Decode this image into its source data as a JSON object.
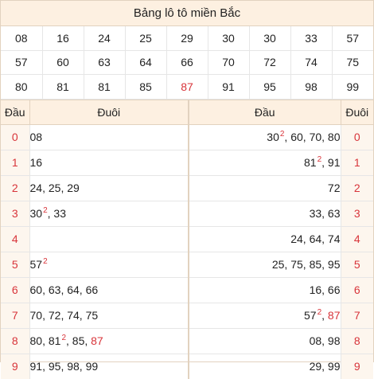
{
  "title": "Bảng lô tô miền Bắc",
  "numbers": [
    [
      "08",
      "16",
      "24",
      "25",
      "29",
      "30",
      "30",
      "33",
      "57"
    ],
    [
      "57",
      "60",
      "63",
      "64",
      "66",
      "70",
      "72",
      "74",
      "75"
    ],
    [
      "80",
      "81",
      "81",
      "85",
      "87",
      "91",
      "95",
      "98",
      "99"
    ]
  ],
  "highlight_numbers": [
    "87"
  ],
  "colors": {
    "accent": "#d8343a",
    "header_bg": "#fdf0e1",
    "border": "#e2d2bf"
  },
  "headers": {
    "dau_left": "Đầu",
    "duoi_left": "Đuôi",
    "dau_right": "Đầu",
    "duoi_right": "Đuôi"
  },
  "rows": [
    {
      "idx": "0",
      "dau": [
        {
          "v": "08"
        }
      ],
      "duoi": [
        {
          "v": "30",
          "sup": "2"
        },
        {
          "v": "60"
        },
        {
          "v": "70"
        },
        {
          "v": "80"
        }
      ]
    },
    {
      "idx": "1",
      "dau": [
        {
          "v": "16"
        }
      ],
      "duoi": [
        {
          "v": "81",
          "sup": "2"
        },
        {
          "v": "91"
        }
      ]
    },
    {
      "idx": "2",
      "dau": [
        {
          "v": "24"
        },
        {
          "v": "25"
        },
        {
          "v": "29"
        }
      ],
      "duoi": [
        {
          "v": "72"
        }
      ]
    },
    {
      "idx": "3",
      "dau": [
        {
          "v": "30",
          "sup": "2"
        },
        {
          "v": "33"
        }
      ],
      "duoi": [
        {
          "v": "33"
        },
        {
          "v": "63"
        }
      ]
    },
    {
      "idx": "4",
      "dau": [],
      "duoi": [
        {
          "v": "24"
        },
        {
          "v": "64"
        },
        {
          "v": "74"
        }
      ]
    },
    {
      "idx": "5",
      "dau": [
        {
          "v": "57",
          "sup": "2"
        }
      ],
      "duoi": [
        {
          "v": "25"
        },
        {
          "v": "75"
        },
        {
          "v": "85"
        },
        {
          "v": "95"
        }
      ]
    },
    {
      "idx": "6",
      "dau": [
        {
          "v": "60"
        },
        {
          "v": "63"
        },
        {
          "v": "64"
        },
        {
          "v": "66"
        }
      ],
      "duoi": [
        {
          "v": "16"
        },
        {
          "v": "66"
        }
      ]
    },
    {
      "idx": "7",
      "dau": [
        {
          "v": "70"
        },
        {
          "v": "72"
        },
        {
          "v": "74"
        },
        {
          "v": "75"
        }
      ],
      "duoi": [
        {
          "v": "57",
          "sup": "2"
        },
        {
          "v": "87",
          "red": true
        }
      ]
    },
    {
      "idx": "8",
      "dau": [
        {
          "v": "80"
        },
        {
          "v": "81",
          "sup": "2"
        },
        {
          "v": "85"
        },
        {
          "v": "87",
          "red": true
        }
      ],
      "duoi": [
        {
          "v": "08"
        },
        {
          "v": "98"
        }
      ]
    },
    {
      "idx": "9",
      "dau": [
        {
          "v": "91"
        },
        {
          "v": "95"
        },
        {
          "v": "98"
        },
        {
          "v": "99"
        }
      ],
      "duoi": [
        {
          "v": "29"
        },
        {
          "v": "99"
        }
      ]
    }
  ]
}
